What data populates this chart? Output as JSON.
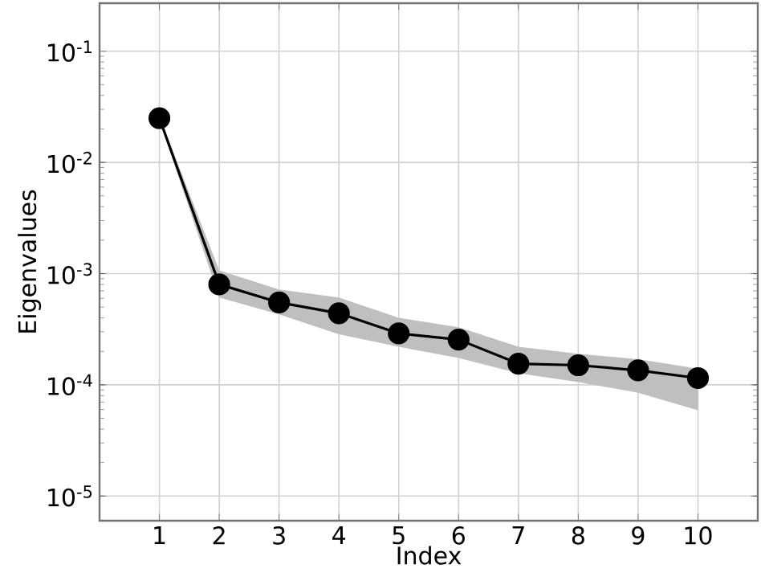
{
  "chart_data": {
    "type": "line",
    "xlabel": "Index",
    "ylabel": "Eigenvalues",
    "log": "y",
    "grid": true,
    "marker": "circle",
    "line_style": "solid",
    "x": [
      1,
      2,
      3,
      4,
      5,
      6,
      7,
      8,
      9,
      10
    ],
    "series": [
      {
        "color": "#000000",
        "values": [
          0.025,
          0.0008,
          0.00055,
          0.00044,
          0.00029,
          0.000255,
          0.000155,
          0.00015,
          0.000135,
          0.000115
        ],
        "lower": [
          0.024,
          0.00061,
          0.00043,
          0.000285,
          0.00022,
          0.000174,
          0.000127,
          0.000106,
          8.5e-05,
          5.9e-05
        ],
        "upper": [
          0.026,
          0.00107,
          0.00072,
          0.00061,
          0.0004,
          0.00033,
          0.00022,
          0.00019,
          0.00017,
          0.00014
        ]
      }
    ],
    "xlim": [
      0,
      11
    ],
    "ylim": [
      6e-06,
      0.27
    ],
    "xticks": [
      1,
      2,
      3,
      4,
      5,
      6,
      7,
      8,
      9,
      10
    ],
    "yticks": [
      {
        "value": 1e-05,
        "label": "10$^{-5}$"
      },
      {
        "value": 0.0001,
        "label": "10$^{-4}$"
      },
      {
        "value": 0.001,
        "label": "10$^{-3}$"
      },
      {
        "value": 0.01,
        "label": "10$^{-2}$"
      },
      {
        "value": 0.1,
        "label": "10$^{-1}$"
      }
    ]
  }
}
